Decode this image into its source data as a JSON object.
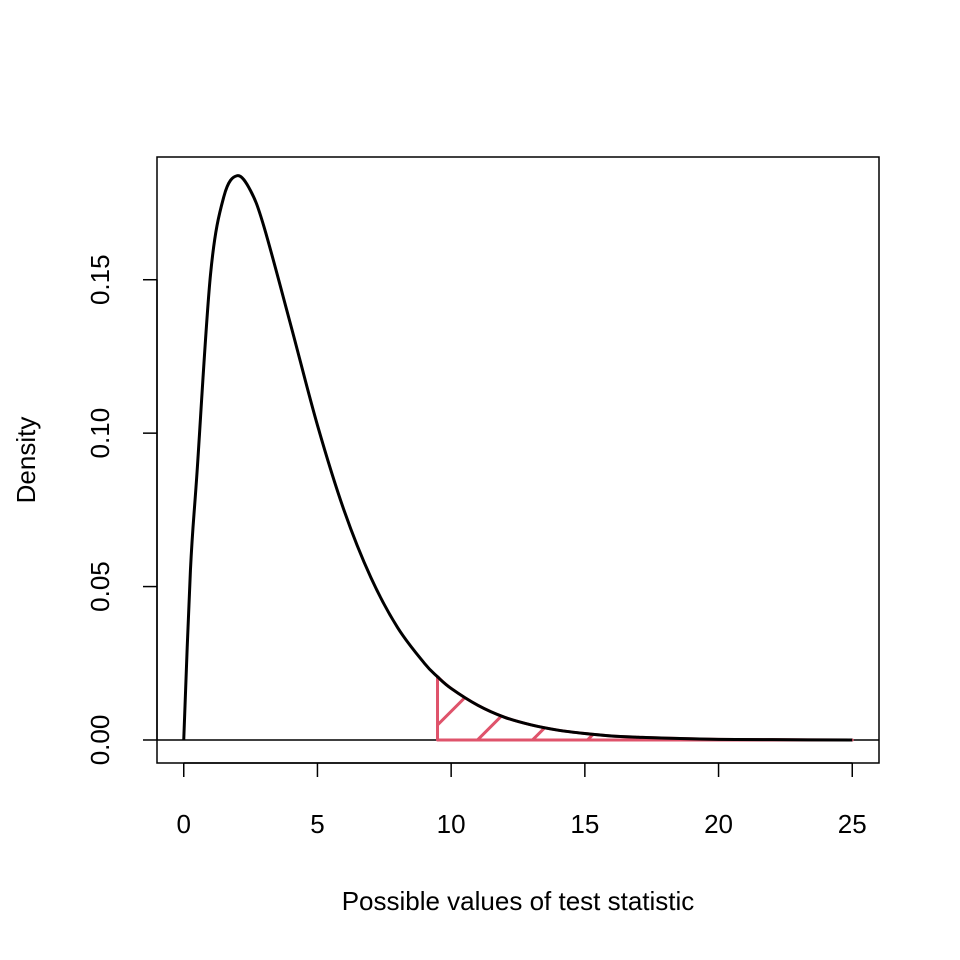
{
  "chart_data": {
    "type": "line",
    "title": "",
    "xlabel": "Possible values of test statistic",
    "ylabel": "Density",
    "xlim": [
      -1,
      26
    ],
    "ylim": [
      -0.0075,
      0.19
    ],
    "x_ticks": [
      "0",
      "5",
      "10",
      "15",
      "20",
      "25"
    ],
    "y_ticks": [
      "0.00",
      "0.05",
      "0.10",
      "0.15"
    ],
    "grid": false,
    "legend": "none",
    "horizontal_reference_line": 0,
    "series": [
      {
        "x": [
          0,
          0.25,
          0.5,
          1,
          1.5,
          2,
          2.5,
          3,
          4,
          5,
          6,
          7,
          8,
          9,
          9.49,
          10,
          11,
          12,
          13,
          14,
          15,
          16,
          17,
          18,
          20,
          22,
          25
        ],
        "values": [
          0,
          0.0553,
          0.0876,
          0.1516,
          0.1771,
          0.1839,
          0.179,
          0.1673,
          0.1353,
          0.1026,
          0.0747,
          0.0529,
          0.0366,
          0.025,
          0.0206,
          0.0168,
          0.0113,
          0.0074,
          0.0049,
          0.0032,
          0.0021,
          0.0013,
          0.0009,
          0.0006,
          0.0002,
          0.0001,
          0.0
        ],
        "color": "#000000"
      }
    ],
    "shaded_region": {
      "from": 9.49,
      "to": 25,
      "color": "#DF536B",
      "fill": "hatched"
    }
  }
}
